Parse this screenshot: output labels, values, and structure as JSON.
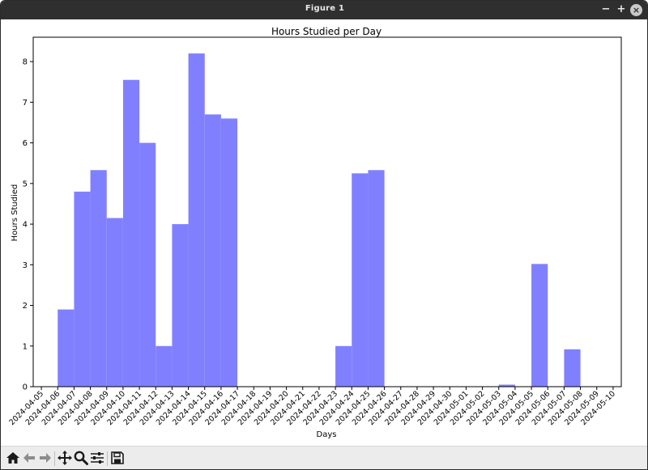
{
  "window": {
    "title": "Figure 1",
    "minimize_label": "−",
    "maximize_label": "+",
    "close_label": "×"
  },
  "toolbar": {
    "tools": [
      "home-icon",
      "back-arrow-icon",
      "forward-arrow-icon",
      "pan-icon",
      "zoom-icon",
      "configure-subplots-icon",
      "save-icon"
    ]
  },
  "colors": {
    "bar": "#8080ff",
    "titlebar": "#2f2f2f",
    "toolbar": "#ececec"
  },
  "chart_data": {
    "type": "bar",
    "title": "Hours Studied per Day",
    "xlabel": "Days",
    "ylabel": "Hours Studied",
    "ylim": [
      0,
      8.6
    ],
    "yticks": [
      0,
      1,
      2,
      3,
      4,
      5,
      6,
      7,
      8
    ],
    "grid": false,
    "categories": [
      "2024-04-05",
      "2024-04-06",
      "2024-04-07",
      "2024-04-08",
      "2024-04-09",
      "2024-04-10",
      "2024-04-11",
      "2024-04-12",
      "2024-04-13",
      "2024-04-14",
      "2024-04-15",
      "2024-04-16",
      "2024-04-17",
      "2024-04-18",
      "2024-04-19",
      "2024-04-20",
      "2024-04-21",
      "2024-04-22",
      "2024-04-23",
      "2024-04-24",
      "2024-04-25",
      "2024-04-26",
      "2024-04-27",
      "2024-04-28",
      "2024-04-29",
      "2024-04-30",
      "2024-05-01",
      "2024-05-02",
      "2024-05-03",
      "2024-05-04",
      "2024-05-05",
      "2024-05-06",
      "2024-05-07",
      "2024-05-08",
      "2024-05-09",
      "2024-05-10"
    ],
    "x": [
      "2024-04-06",
      "2024-04-07",
      "2024-04-08",
      "2024-04-09",
      "2024-04-10",
      "2024-04-11",
      "2024-04-12",
      "2024-04-13",
      "2024-04-14",
      "2024-04-15",
      "2024-04-16",
      "2024-04-17",
      "2024-04-18",
      "2024-04-19",
      "2024-04-20",
      "2024-04-21",
      "2024-04-22",
      "2024-04-23",
      "2024-04-24",
      "2024-04-25",
      "2024-04-26",
      "2024-04-27",
      "2024-04-28",
      "2024-04-29",
      "2024-04-30",
      "2024-05-01",
      "2024-05-02",
      "2024-05-03",
      "2024-05-04",
      "2024-05-05",
      "2024-05-06",
      "2024-05-07",
      "2024-05-08",
      "2024-05-09"
    ],
    "values": [
      1.9,
      4.8,
      5.33,
      4.15,
      7.55,
      6.0,
      1.0,
      4.0,
      8.2,
      6.7,
      6.6,
      0,
      0,
      0,
      0,
      0,
      0,
      1.0,
      5.25,
      5.33,
      0,
      0,
      0,
      0,
      0,
      0,
      0,
      0.05,
      0,
      3.02,
      0,
      0.92,
      0.01,
      0
    ]
  }
}
